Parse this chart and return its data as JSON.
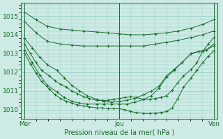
{
  "bg_color": "#cdeae4",
  "grid_color": "#8ecfc4",
  "line_color": "#1a6e2e",
  "xlabel": "Pression niveau de la mer( hPa )",
  "xtick_labels": [
    "Mer",
    "Jeu",
    "Ven"
  ],
  "xtick_positions": [
    0,
    0.5,
    1.0
  ],
  "ylim": [
    1009.5,
    1015.7
  ],
  "yticks": [
    1010,
    1011,
    1012,
    1013,
    1014,
    1015
  ],
  "lines": [
    {
      "x": [
        0.0,
        0.06,
        0.12,
        0.19,
        0.25,
        0.31,
        0.38,
        0.44,
        0.5,
        0.56,
        0.63,
        0.69,
        0.75,
        0.81,
        0.88,
        0.94,
        1.0
      ],
      "y": [
        1015.2,
        1014.8,
        1014.45,
        1014.3,
        1014.25,
        1014.2,
        1014.15,
        1014.1,
        1014.05,
        1014.0,
        1014.0,
        1014.05,
        1014.1,
        1014.2,
        1014.35,
        1014.55,
        1014.8
      ]
    },
    {
      "x": [
        0.0,
        0.06,
        0.12,
        0.19,
        0.25,
        0.31,
        0.38,
        0.44,
        0.5,
        0.56,
        0.63,
        0.69,
        0.75,
        0.81,
        0.88,
        0.94,
        1.0
      ],
      "y": [
        1014.7,
        1014.1,
        1013.65,
        1013.5,
        1013.45,
        1013.4,
        1013.4,
        1013.4,
        1013.4,
        1013.4,
        1013.4,
        1013.5,
        1013.6,
        1013.7,
        1013.85,
        1014.0,
        1014.2
      ]
    },
    {
      "x": [
        0.0,
        0.04,
        0.08,
        0.12,
        0.17,
        0.21,
        0.25,
        0.29,
        0.33,
        0.38,
        0.42,
        0.46,
        0.5,
        0.54,
        0.58,
        0.63,
        0.67,
        0.71,
        0.75,
        0.79,
        0.83,
        0.88,
        0.92,
        0.96,
        1.0
      ],
      "y": [
        1013.8,
        1013.3,
        1012.8,
        1012.4,
        1012.1,
        1011.7,
        1011.3,
        1011.0,
        1010.75,
        1010.55,
        1010.45,
        1010.4,
        1010.45,
        1010.5,
        1010.6,
        1010.8,
        1011.0,
        1011.25,
        1011.8,
        1012.15,
        1012.5,
        1013.0,
        1013.1,
        1013.2,
        1013.4
      ]
    },
    {
      "x": [
        0.0,
        0.04,
        0.08,
        0.12,
        0.17,
        0.21,
        0.25,
        0.29,
        0.33,
        0.38,
        0.42,
        0.46,
        0.5,
        0.54,
        0.58,
        0.63,
        0.67,
        0.71,
        0.75,
        0.79,
        0.83,
        0.88,
        0.92,
        0.96,
        1.0
      ],
      "y": [
        1013.2,
        1012.5,
        1011.85,
        1011.3,
        1010.95,
        1010.65,
        1010.45,
        1010.35,
        1010.3,
        1010.3,
        1010.3,
        1010.3,
        1010.3,
        1010.3,
        1010.4,
        1010.55,
        1010.75,
        1011.15,
        1011.75,
        1012.1,
        1012.5,
        1013.0,
        1013.1,
        1013.2,
        1013.5
      ]
    },
    {
      "x": [
        0.0,
        0.03,
        0.06,
        0.09,
        0.13,
        0.16,
        0.19,
        0.22,
        0.25,
        0.28,
        0.31,
        0.34,
        0.38,
        0.41,
        0.44,
        0.47,
        0.5,
        0.53,
        0.56,
        0.59,
        0.63,
        0.66,
        0.69,
        0.72,
        0.75,
        0.78,
        0.81,
        0.84,
        0.88,
        0.91,
        0.94,
        0.97,
        1.0
      ],
      "y": [
        1013.0,
        1012.45,
        1011.95,
        1011.5,
        1011.1,
        1010.8,
        1010.6,
        1010.45,
        1010.35,
        1010.25,
        1010.2,
        1010.15,
        1010.1,
        1010.1,
        1010.05,
        1010.05,
        1010.05,
        1010.0,
        1009.9,
        1009.85,
        1009.8,
        1009.8,
        1009.82,
        1009.85,
        1009.9,
        1010.1,
        1010.6,
        1011.2,
        1011.7,
        1012.1,
        1012.5,
        1012.85,
        1013.15
      ]
    },
    {
      "x": [
        0.0,
        0.03,
        0.06,
        0.09,
        0.13,
        0.16,
        0.19,
        0.22,
        0.25,
        0.28,
        0.31,
        0.34,
        0.38,
        0.41,
        0.44,
        0.47,
        0.5,
        0.53,
        0.56,
        0.59,
        0.63,
        0.66,
        0.69,
        0.72,
        0.75,
        0.78,
        0.81,
        0.84,
        0.88,
        0.91,
        0.94,
        0.97,
        1.0
      ],
      "y": [
        1013.5,
        1013.0,
        1012.5,
        1012.1,
        1011.8,
        1011.55,
        1011.35,
        1011.2,
        1011.0,
        1010.85,
        1010.7,
        1010.6,
        1010.5,
        1010.5,
        1010.5,
        1010.55,
        1010.6,
        1010.65,
        1010.7,
        1010.65,
        1010.55,
        1010.55,
        1010.6,
        1010.65,
        1010.75,
        1011.05,
        1011.45,
        1011.8,
        1012.15,
        1012.5,
        1013.1,
        1013.5,
        1013.85
      ]
    }
  ]
}
